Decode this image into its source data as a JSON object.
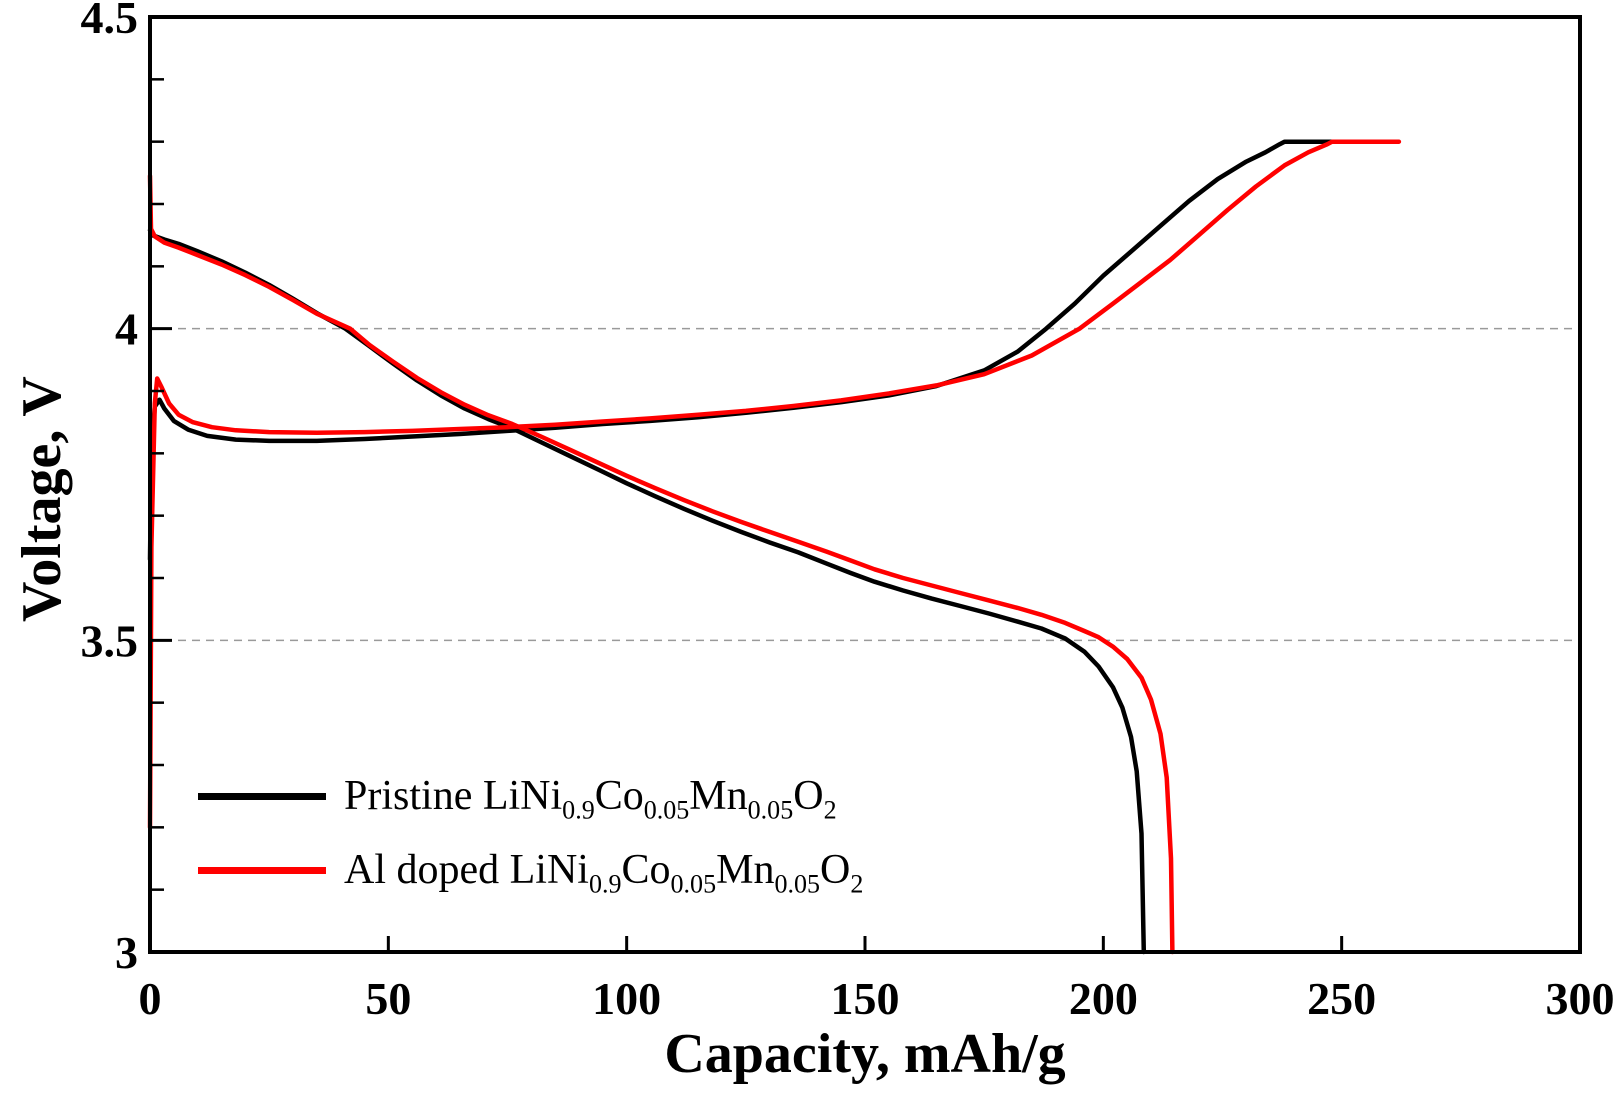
{
  "chart_data": {
    "type": "line",
    "title": "",
    "xlabel": "Capacity, mAh/g",
    "ylabel": "Voltage, V",
    "xlim": [
      0,
      300
    ],
    "ylim": [
      3,
      4.5
    ],
    "x_ticks": [
      {
        "v": 0,
        "label": "0"
      },
      {
        "v": 50,
        "label": "50"
      },
      {
        "v": 100,
        "label": "100"
      },
      {
        "v": 150,
        "label": "150"
      },
      {
        "v": 200,
        "label": "200"
      },
      {
        "v": 250,
        "label": "250"
      },
      {
        "v": 300,
        "label": "300"
      }
    ],
    "y_ticks": [
      {
        "v": 3,
        "label": "3"
      },
      {
        "v": 3.5,
        "label": "3.5"
      },
      {
        "v": 4,
        "label": "4"
      },
      {
        "v": 4.5,
        "label": "4.5"
      }
    ],
    "y_minor_tick_step": 0.1,
    "gridlines_y": [
      3.5,
      4.0
    ],
    "grid_color": "#9a9a9a",
    "frame_color": "#000000",
    "legend_position": "lower-left",
    "series": [
      {
        "name": "Pristine LiNi0.9Co0.05Mn0.05O2 - charge",
        "color": "#000000",
        "points": [
          [
            0,
            3.63
          ],
          [
            0.3,
            3.8
          ],
          [
            1,
            3.875
          ],
          [
            2,
            3.886
          ],
          [
            3,
            3.872
          ],
          [
            5,
            3.852
          ],
          [
            8,
            3.838
          ],
          [
            12,
            3.828
          ],
          [
            18,
            3.822
          ],
          [
            25,
            3.82
          ],
          [
            35,
            3.82
          ],
          [
            45,
            3.823
          ],
          [
            55,
            3.827
          ],
          [
            65,
            3.831
          ],
          [
            75,
            3.836
          ],
          [
            85,
            3.841
          ],
          [
            95,
            3.847
          ],
          [
            105,
            3.852
          ],
          [
            115,
            3.858
          ],
          [
            125,
            3.865
          ],
          [
            135,
            3.873
          ],
          [
            145,
            3.882
          ],
          [
            155,
            3.893
          ],
          [
            165,
            3.908
          ],
          [
            175,
            3.933
          ],
          [
            182,
            3.963
          ],
          [
            188,
            4.0
          ],
          [
            194,
            4.04
          ],
          [
            200,
            4.085
          ],
          [
            206,
            4.125
          ],
          [
            212,
            4.165
          ],
          [
            218,
            4.205
          ],
          [
            224,
            4.24
          ],
          [
            230,
            4.268
          ],
          [
            234,
            4.283
          ],
          [
            237,
            4.296
          ],
          [
            238,
            4.3
          ],
          [
            248,
            4.3
          ]
        ]
      },
      {
        "name": "Pristine LiNi0.9Co0.05Mn0.05O2 - discharge",
        "color": "#000000",
        "points": [
          [
            0,
            4.158
          ],
          [
            0.5,
            4.15
          ],
          [
            3,
            4.143
          ],
          [
            6,
            4.136
          ],
          [
            10,
            4.124
          ],
          [
            15,
            4.108
          ],
          [
            20,
            4.09
          ],
          [
            25,
            4.07
          ],
          [
            30,
            4.048
          ],
          [
            35,
            4.025
          ],
          [
            41,
            4.0
          ],
          [
            46,
            3.972
          ],
          [
            51,
            3.944
          ],
          [
            56,
            3.917
          ],
          [
            61,
            3.893
          ],
          [
            66,
            3.872
          ],
          [
            71,
            3.855
          ],
          [
            76,
            3.84
          ],
          [
            82,
            3.818
          ],
          [
            88,
            3.796
          ],
          [
            94,
            3.774
          ],
          [
            100,
            3.752
          ],
          [
            106,
            3.731
          ],
          [
            112,
            3.711
          ],
          [
            118,
            3.692
          ],
          [
            124,
            3.674
          ],
          [
            130,
            3.657
          ],
          [
            136,
            3.641
          ],
          [
            142,
            3.623
          ],
          [
            147,
            3.608
          ],
          [
            152,
            3.594
          ],
          [
            158,
            3.58
          ],
          [
            164,
            3.567
          ],
          [
            170,
            3.555
          ],
          [
            176,
            3.543
          ],
          [
            182,
            3.53
          ],
          [
            187,
            3.519
          ],
          [
            192,
            3.503
          ],
          [
            196,
            3.482
          ],
          [
            199,
            3.458
          ],
          [
            202,
            3.425
          ],
          [
            204,
            3.392
          ],
          [
            205.8,
            3.345
          ],
          [
            207,
            3.29
          ],
          [
            208,
            3.19
          ],
          [
            208.5,
            3.0
          ]
        ]
      },
      {
        "name": "Al doped LiNi0.9Co0.05Mn0.05O2 - charge",
        "color": "#ff0000",
        "points": [
          [
            0,
            3.2
          ],
          [
            0.3,
            3.65
          ],
          [
            1,
            3.88
          ],
          [
            1.5,
            3.92
          ],
          [
            2.5,
            3.905
          ],
          [
            4,
            3.88
          ],
          [
            6,
            3.862
          ],
          [
            9,
            3.85
          ],
          [
            13,
            3.842
          ],
          [
            18,
            3.837
          ],
          [
            25,
            3.834
          ],
          [
            35,
            3.833
          ],
          [
            45,
            3.834
          ],
          [
            55,
            3.836
          ],
          [
            65,
            3.839
          ],
          [
            75,
            3.842
          ],
          [
            85,
            3.846
          ],
          [
            95,
            3.851
          ],
          [
            105,
            3.856
          ],
          [
            115,
            3.862
          ],
          [
            125,
            3.868
          ],
          [
            135,
            3.876
          ],
          [
            145,
            3.885
          ],
          [
            155,
            3.896
          ],
          [
            165,
            3.909
          ],
          [
            175,
            3.927
          ],
          [
            185,
            3.957
          ],
          [
            195,
            4.0
          ],
          [
            202,
            4.04
          ],
          [
            208,
            4.075
          ],
          [
            214,
            4.11
          ],
          [
            220,
            4.15
          ],
          [
            226,
            4.19
          ],
          [
            232,
            4.228
          ],
          [
            238,
            4.262
          ],
          [
            243,
            4.283
          ],
          [
            247,
            4.296
          ],
          [
            248,
            4.3
          ],
          [
            262,
            4.3
          ]
        ]
      },
      {
        "name": "Al doped LiNi0.9Co0.05Mn0.05O2 - discharge",
        "color": "#ff0000",
        "points": [
          [
            0,
            4.245
          ],
          [
            0.2,
            4.16
          ],
          [
            1,
            4.148
          ],
          [
            3,
            4.138
          ],
          [
            6,
            4.13
          ],
          [
            10,
            4.118
          ],
          [
            15,
            4.103
          ],
          [
            20,
            4.086
          ],
          [
            25,
            4.067
          ],
          [
            30,
            4.046
          ],
          [
            35,
            4.024
          ],
          [
            42,
            4.0
          ],
          [
            46,
            3.974
          ],
          [
            51,
            3.947
          ],
          [
            56,
            3.921
          ],
          [
            61,
            3.898
          ],
          [
            66,
            3.878
          ],
          [
            71,
            3.861
          ],
          [
            76,
            3.847
          ],
          [
            82,
            3.827
          ],
          [
            88,
            3.806
          ],
          [
            94,
            3.785
          ],
          [
            100,
            3.764
          ],
          [
            106,
            3.744
          ],
          [
            112,
            3.725
          ],
          [
            118,
            3.707
          ],
          [
            124,
            3.69
          ],
          [
            130,
            3.674
          ],
          [
            136,
            3.658
          ],
          [
            142,
            3.642
          ],
          [
            147,
            3.628
          ],
          [
            152,
            3.614
          ],
          [
            158,
            3.6
          ],
          [
            164,
            3.588
          ],
          [
            170,
            3.576
          ],
          [
            176,
            3.564
          ],
          [
            182,
            3.552
          ],
          [
            187,
            3.541
          ],
          [
            192,
            3.528
          ],
          [
            196,
            3.515
          ],
          [
            199,
            3.505
          ],
          [
            202,
            3.49
          ],
          [
            205,
            3.47
          ],
          [
            208,
            3.44
          ],
          [
            210,
            3.405
          ],
          [
            212,
            3.35
          ],
          [
            213.3,
            3.28
          ],
          [
            214.2,
            3.15
          ],
          [
            214.5,
            3.0
          ]
        ]
      }
    ]
  },
  "legend": {
    "items": [
      {
        "color": "#000000",
        "parts": [
          "Pristine LiNi",
          "0.9",
          "Co",
          "0.05",
          "Mn",
          "0.05",
          "O",
          "2"
        ]
      },
      {
        "color": "#ff0000",
        "parts": [
          "Al doped LiNi",
          "0.9",
          "Co",
          "0.05",
          "Mn",
          "0.05",
          "O",
          "2"
        ]
      }
    ]
  }
}
